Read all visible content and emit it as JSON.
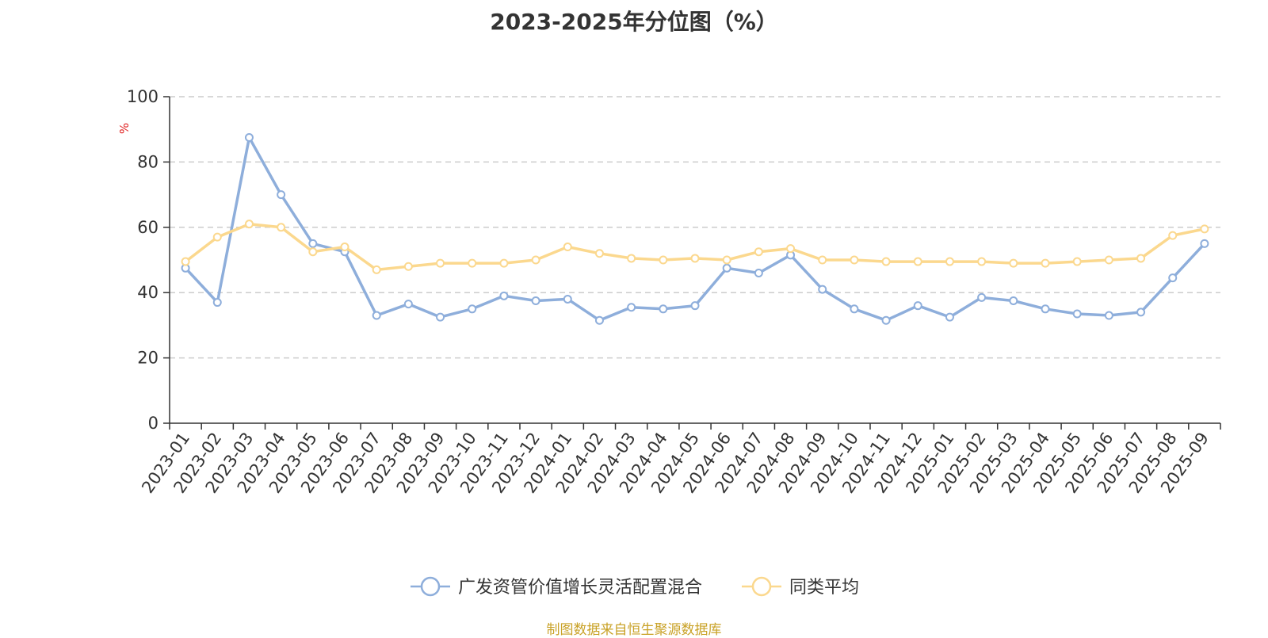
{
  "chart_data": {
    "type": "line",
    "title": "2023-2025年分位图（%）",
    "y_unit": "%",
    "ylim": [
      0,
      100
    ],
    "y_ticks": [
      0,
      20,
      40,
      60,
      80,
      100
    ],
    "grid": "horizontal dashed",
    "legend_position": "bottom",
    "x_tick_labels": [
      "2023-01",
      "2023-02",
      "2023-03",
      "2023-04",
      "2023-05",
      "2023-06",
      "2023-07",
      "2023-08",
      "2023-09",
      "2023-10",
      "2023-11",
      "2023-12",
      "2024-01",
      "2024-02",
      "2024-03",
      "2024-04",
      "2024-05",
      "2024-06",
      "2024-07",
      "2024-08",
      "2024-09",
      "2024-10",
      "2024-11",
      "2024-12",
      "2025-01",
      "2025-02",
      "2025-03",
      "2025-04",
      "2025-05",
      "2025-06",
      "2025-07",
      "2025-08",
      "2025-09"
    ],
    "series": [
      {
        "name": "广发资管价值增长灵活配置混合",
        "color": "#8eaedb",
        "values": [
          47.5,
          37.0,
          87.5,
          70.0,
          55.0,
          52.5,
          33.0,
          36.5,
          32.5,
          35.0,
          39.0,
          37.5,
          38.0,
          31.5,
          35.5,
          35.0,
          36.0,
          47.5,
          46.0,
          51.5,
          41.0,
          35.0,
          31.5,
          36.0,
          32.5,
          38.5,
          37.5,
          35.0,
          33.5,
          33.0,
          34.0,
          44.5,
          55.0
        ]
      },
      {
        "name": "同类平均",
        "color": "#fbd88e",
        "values": [
          49.5,
          57.0,
          61.0,
          60.0,
          52.5,
          54.0,
          47.0,
          48.0,
          49.0,
          49.0,
          49.0,
          50.0,
          54.0,
          52.0,
          50.5,
          50.0,
          50.5,
          50.0,
          52.5,
          53.5,
          50.0,
          50.0,
          49.5,
          49.5,
          49.5,
          49.5,
          49.0,
          49.0,
          49.5,
          50.0,
          50.5,
          57.5,
          59.5
        ]
      }
    ]
  },
  "source": "制图数据来自恒生聚源数据库"
}
